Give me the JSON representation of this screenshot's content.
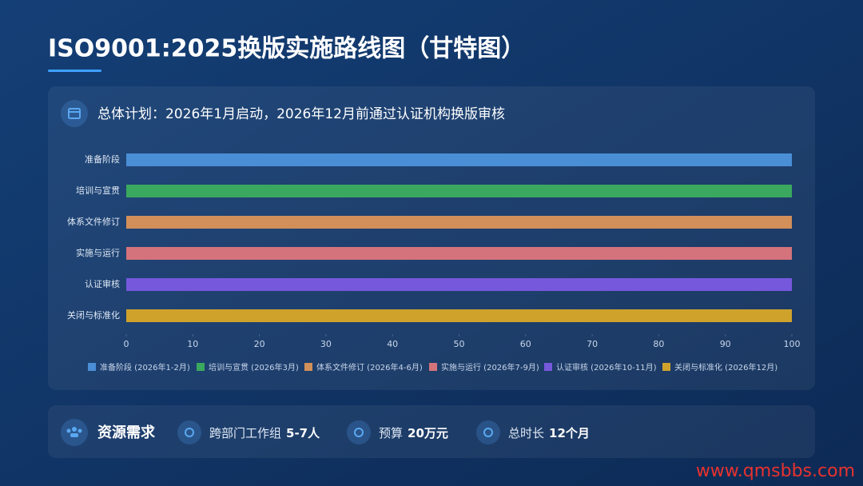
{
  "title": "ISO9001:2025换版实施路线图（甘特图）",
  "plan": "总体计划：2026年1月启动，2026年12月前通过认证机构换版审核",
  "chart_data": {
    "type": "bar",
    "orientation": "horizontal",
    "categories": [
      "准备阶段",
      "培训与宣贯",
      "体系文件修订",
      "实施与运行",
      "认证审核",
      "关闭与标准化"
    ],
    "values": [
      100,
      100,
      100,
      100,
      100,
      100
    ],
    "colors": [
      "#4a8fd6",
      "#3aa85e",
      "#d28f5a",
      "#d4737c",
      "#7658dc",
      "#cfa22c"
    ],
    "legend": [
      "准备阶段 (2026年1-2月)",
      "培训与宣贯 (2026年3月)",
      "体系文件修订 (2026年4-6月)",
      "实施与运行 (2026年7-9月)",
      "认证审核 (2026年10-11月)",
      "关闭与标准化 (2026年12月)"
    ],
    "xlim": [
      0,
      100
    ],
    "xticks": [
      0,
      10,
      20,
      30,
      40,
      50,
      60,
      70,
      80,
      90,
      100
    ],
    "grid": false
  },
  "resources": {
    "label": "资源需求",
    "items": [
      {
        "label": "跨部门工作组",
        "value": "5-7人"
      },
      {
        "label": "预算",
        "value": "20万元"
      },
      {
        "label": "总时长",
        "value": "12个月"
      }
    ]
  },
  "watermark": "www.qmsbbs.com"
}
